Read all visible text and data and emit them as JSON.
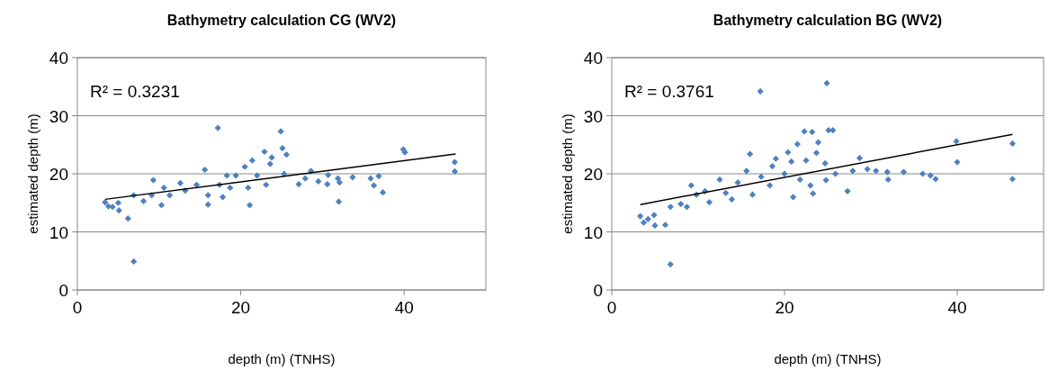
{
  "chart_data": [
    {
      "type": "scatter",
      "title": "Bathymetry calculation CG (WV2)",
      "xlabel": "depth (m) (TNHS)",
      "ylabel": "estimated depth (m)",
      "annotations": [
        "R² = 0.3231"
      ],
      "xlim": [
        0,
        50
      ],
      "ylim": [
        0,
        40
      ],
      "xticks": [
        0,
        20,
        40
      ],
      "yticks": [
        0,
        10,
        20,
        30,
        40
      ],
      "grid": "y",
      "series": [
        {
          "color": "#4f81bd",
          "marker": "diamond",
          "x": [
            3.4,
            3.8,
            4.3,
            5.0,
            5.1,
            6.2,
            6.9,
            6.9,
            8.1,
            9.3,
            9.1,
            10.3,
            10.6,
            11.3,
            12.6,
            13.2,
            14.6,
            15.6,
            16.0,
            16.0,
            17.2,
            17.4,
            17.8,
            18.3,
            18.7,
            19.4,
            20.5,
            20.9,
            21.1,
            21.4,
            22.0,
            22.9,
            23.1,
            23.6,
            23.8,
            24.9,
            25.1,
            25.6,
            25.3,
            27.1,
            27.9,
            28.6,
            29.5,
            30.7,
            30.6,
            31.9,
            32.0,
            32.1,
            33.7,
            35.9,
            36.3,
            36.9,
            37.4,
            39.9,
            40.1,
            46.2,
            46.2
          ],
          "values": [
            15.1,
            14.4,
            14.3,
            15.0,
            13.7,
            12.3,
            4.9,
            16.3,
            15.3,
            18.9,
            16.3,
            14.6,
            17.6,
            16.3,
            18.4,
            17.1,
            18.1,
            20.7,
            16.3,
            14.7,
            27.9,
            18.1,
            16.0,
            19.7,
            17.6,
            19.7,
            21.2,
            17.6,
            14.6,
            22.3,
            19.7,
            23.8,
            18.1,
            21.7,
            22.8,
            27.3,
            24.4,
            23.3,
            20.0,
            18.2,
            19.2,
            20.5,
            18.7,
            19.8,
            18.2,
            19.2,
            15.2,
            18.5,
            19.4,
            19.2,
            18.0,
            19.6,
            16.8,
            24.2,
            23.7,
            22.0,
            20.4
          ]
        },
        {
          "type": "line",
          "color": "#000000",
          "marker": "none",
          "x": [
            3.4,
            46.3
          ],
          "values": [
            15.6,
            23.4
          ]
        }
      ]
    },
    {
      "type": "scatter",
      "title": "Bathymetry calculation BG (WV2)",
      "xlabel": "depth (m) (TNHS)",
      "ylabel": "estimated depth (m)",
      "annotations": [
        "R² = 0.3761"
      ],
      "xlim": [
        0,
        50
      ],
      "ylim": [
        0,
        40
      ],
      "xticks": [
        0,
        20,
        40
      ],
      "yticks": [
        0,
        10,
        20,
        30,
        40
      ],
      "grid": "y",
      "series": [
        {
          "color": "#4f81bd",
          "marker": "diamond",
          "x": [
            3.3,
            3.7,
            4.2,
            4.9,
            5.0,
            6.2,
            6.8,
            6.8,
            8.0,
            8.7,
            9.2,
            9.8,
            10.8,
            11.3,
            12.5,
            13.2,
            13.9,
            14.6,
            15.6,
            16.0,
            16.3,
            17.2,
            17.3,
            18.3,
            18.6,
            19.0,
            20.0,
            20.4,
            20.8,
            21.0,
            21.5,
            21.8,
            22.3,
            22.5,
            23.2,
            23.0,
            23.3,
            23.9,
            23.7,
            24.7,
            24.8,
            24.9,
            25.1,
            25.6,
            25.9,
            27.3,
            27.9,
            28.7,
            29.6,
            30.6,
            31.9,
            32.0,
            33.8,
            36.0,
            36.9,
            37.5,
            39.9,
            40.0,
            46.4,
            46.4
          ],
          "values": [
            12.7,
            11.6,
            12.2,
            12.9,
            11.1,
            11.2,
            4.4,
            14.3,
            14.8,
            14.3,
            18.0,
            16.4,
            17.0,
            15.1,
            19.0,
            16.7,
            15.6,
            18.5,
            20.5,
            23.4,
            16.4,
            34.2,
            19.5,
            18.0,
            21.3,
            22.6,
            20.0,
            23.7,
            22.1,
            16.0,
            25.1,
            19.0,
            27.3,
            22.3,
            27.2,
            18.0,
            16.6,
            25.4,
            23.6,
            21.8,
            18.9,
            35.6,
            27.5,
            27.5,
            20.0,
            17.0,
            20.5,
            22.7,
            20.8,
            20.5,
            20.3,
            19.0,
            20.3,
            20.0,
            19.7,
            19.1,
            25.6,
            22.0,
            25.2,
            19.1
          ]
        },
        {
          "type": "line",
          "color": "#000000",
          "marker": "none",
          "x": [
            3.3,
            46.4
          ],
          "values": [
            14.7,
            26.8
          ]
        }
      ]
    }
  ]
}
